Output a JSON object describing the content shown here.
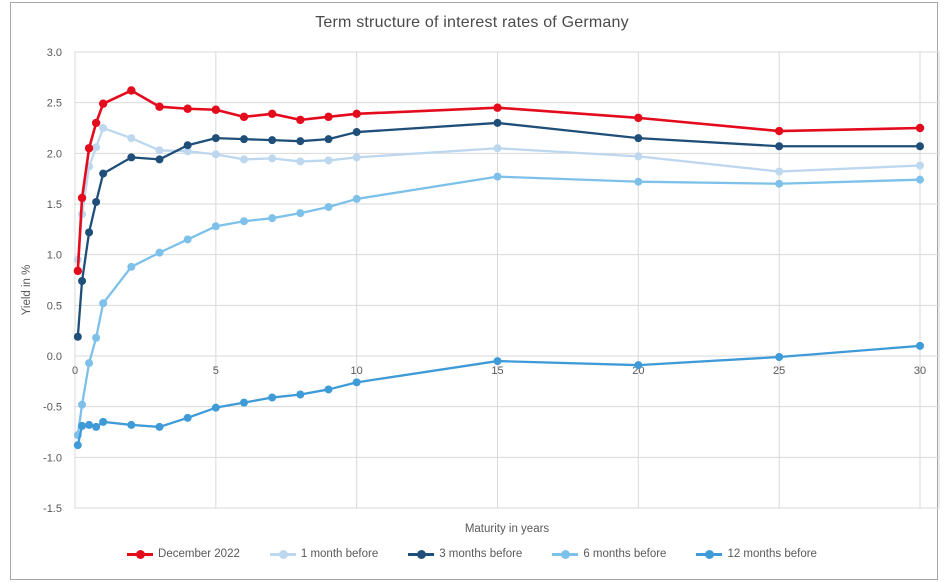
{
  "chart_data": {
    "type": "line",
    "title": "Term structure of interest rates of Germany",
    "xlabel": "Maturity in years",
    "ylabel": "Yield in %",
    "xlim": [
      0,
      30
    ],
    "ylim": [
      -1.5,
      3.0
    ],
    "grid": true,
    "legend_position": "bottom",
    "x_ticks": [
      0,
      5,
      10,
      15,
      20,
      25,
      30
    ],
    "x_tick_labels": [
      "0",
      "5",
      "10",
      "15",
      "20",
      "25",
      "30"
    ],
    "y_ticks": [
      3.0,
      2.5,
      2.0,
      1.5,
      1.0,
      0.5,
      0.0,
      -0.5,
      -1.0,
      -1.5
    ],
    "y_tick_labels": [
      "3.0",
      "2.5",
      "2.0",
      "1.5",
      "1.0",
      "0.5",
      "0.0",
      "-0.5",
      "-1.0",
      "-1.5"
    ],
    "x": [
      0.1,
      0.25,
      0.5,
      0.75,
      1,
      2,
      3,
      4,
      5,
      6,
      7,
      8,
      9,
      10,
      15,
      20,
      25,
      30
    ],
    "series": [
      {
        "name": "December 2022",
        "color": "#e30b1c",
        "values": [
          0.84,
          1.56,
          2.05,
          2.3,
          2.49,
          2.62,
          2.46,
          2.44,
          2.43,
          2.36,
          2.39,
          2.33,
          2.36,
          2.39,
          2.45,
          2.35,
          2.22,
          2.25
        ]
      },
      {
        "name": "1 month before",
        "color": "#bdd7ee",
        "values": [
          0.95,
          1.4,
          1.87,
          2.06,
          2.25,
          2.15,
          2.03,
          2.02,
          1.99,
          1.94,
          1.95,
          1.92,
          1.93,
          1.96,
          2.05,
          1.97,
          1.82,
          1.88
        ]
      },
      {
        "name": "3 months before",
        "color": "#1f4e79",
        "values": [
          0.19,
          0.74,
          1.22,
          1.52,
          1.8,
          1.96,
          1.94,
          2.08,
          2.15,
          2.14,
          2.13,
          2.12,
          2.14,
          2.21,
          2.3,
          2.15,
          2.07,
          2.07
        ]
      },
      {
        "name": "6 months before",
        "color": "#7dc1ea",
        "values": [
          -0.78,
          -0.48,
          -0.07,
          0.18,
          0.52,
          0.88,
          1.02,
          1.15,
          1.28,
          1.33,
          1.36,
          1.41,
          1.47,
          1.55,
          1.77,
          1.72,
          1.7,
          1.74
        ]
      },
      {
        "name": "12 months before",
        "color": "#3e9bd8",
        "values": [
          -0.88,
          -0.69,
          -0.68,
          -0.7,
          -0.65,
          -0.68,
          -0.7,
          -0.61,
          -0.51,
          -0.46,
          -0.41,
          -0.38,
          -0.33,
          -0.26,
          -0.05,
          -0.09,
          -0.01,
          0.1
        ]
      }
    ],
    "style": {
      "gridline_color": "#d9d9d9",
      "tick_label_color": "#595959",
      "axis_title_color": "#595959",
      "title_color": "#4a4a4a"
    }
  }
}
